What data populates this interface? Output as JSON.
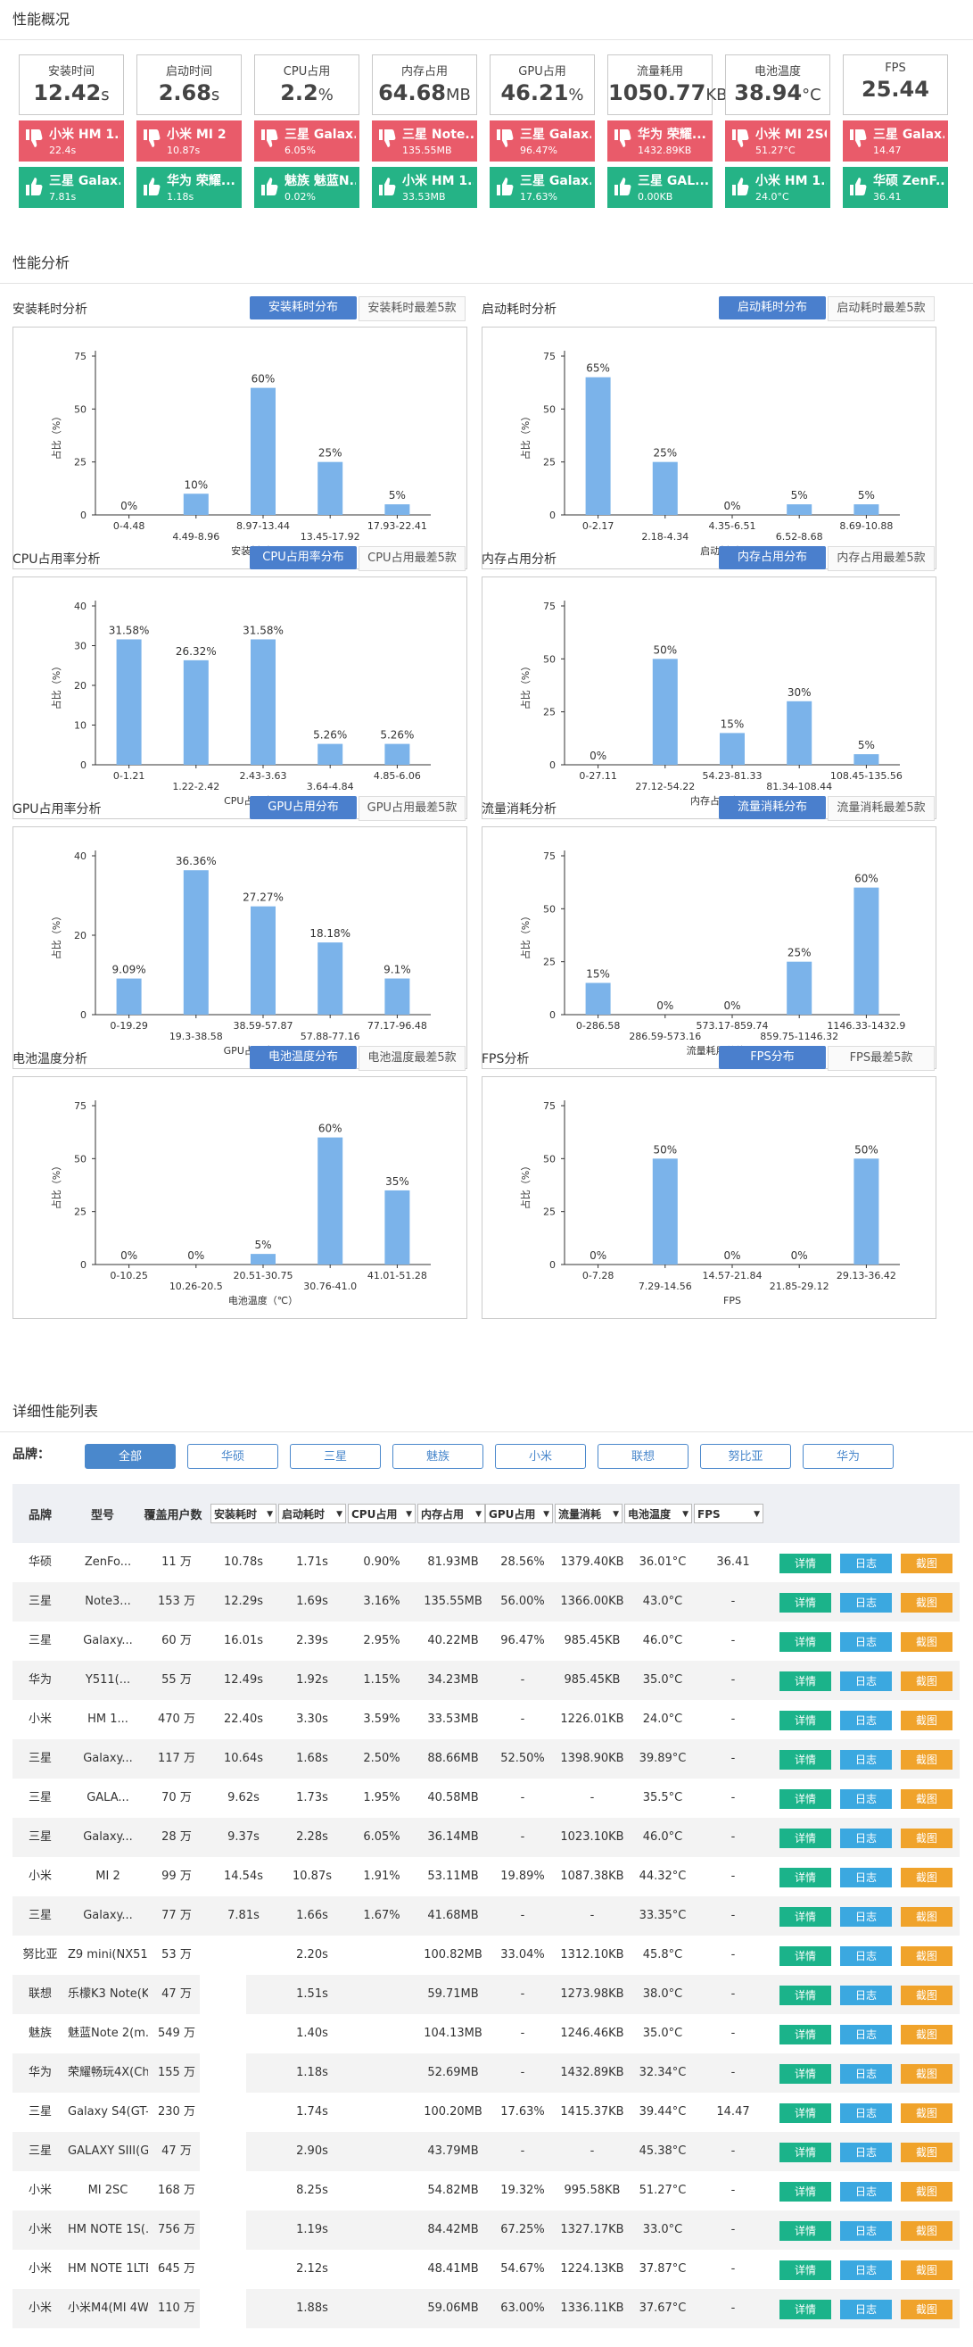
{
  "overview": {
    "title": "性能概况",
    "metrics": [
      {
        "label": "安装时间",
        "value": "12.42",
        "unit": "s",
        "worst": {
          "name": "小米 HM 1...",
          "value": "22.4s"
        },
        "best": {
          "name": "三星 Galax...",
          "value": "7.81s"
        }
      },
      {
        "label": "启动时间",
        "value": "2.68",
        "unit": "s",
        "worst": {
          "name": "小米 MI 2",
          "value": "10.87s"
        },
        "best": {
          "name": "华为 荣耀...",
          "value": "1.18s"
        }
      },
      {
        "label": "CPU占用",
        "value": "2.2",
        "unit": "%",
        "worst": {
          "name": "三星 Galax...",
          "value": "6.05%"
        },
        "best": {
          "name": "魅族 魅蓝N...",
          "value": "0.02%"
        }
      },
      {
        "label": "内存占用",
        "value": "64.68",
        "unit": "MB",
        "worst": {
          "name": "三星 Note...",
          "value": "135.55MB"
        },
        "best": {
          "name": "小米 HM 1...",
          "value": "33.53MB"
        }
      },
      {
        "label": "GPU占用",
        "value": "46.21",
        "unit": "%",
        "worst": {
          "name": "三星 Galax...",
          "value": "96.47%"
        },
        "best": {
          "name": "三星 Galax...",
          "value": "17.63%"
        }
      },
      {
        "label": "流量耗用",
        "value": "1050.77",
        "unit": "KB",
        "worst": {
          "name": "华为 荣耀...",
          "value": "1432.89KB"
        },
        "best": {
          "name": "三星 GAL...",
          "value": "0.00KB"
        }
      },
      {
        "label": "电池温度",
        "value": "38.94",
        "unit": "°C",
        "worst": {
          "name": "小米 MI 2SC",
          "value": "51.27°C"
        },
        "best": {
          "name": "小米 HM 1...",
          "value": "24.0°C"
        }
      },
      {
        "label": "FPS",
        "value": "25.44",
        "unit": "",
        "worst": {
          "name": "三星 Galax...",
          "value": "14.47"
        },
        "best": {
          "name": "华硕 ZenF...",
          "value": "36.41"
        }
      }
    ]
  },
  "analysis": {
    "title": "性能分析",
    "ylabel": "占比（%）",
    "panels": [
      {
        "title": "安装耗时分析",
        "tab_active": "安装耗时分布",
        "tab_other": "安装耗时最差5款",
        "chart_data": {
          "type": "bar",
          "xlabel": "安装耗时（s）",
          "ylim": [
            0,
            75
          ],
          "yticks": [
            0,
            25,
            50,
            75
          ],
          "categories": [
            "0-4.48",
            "4.49-8.96",
            "8.97-13.44",
            "13.45-17.92",
            "17.93-22.41"
          ],
          "values": [
            0,
            10,
            60,
            25,
            5
          ],
          "data_labels": [
            "0%",
            "10%",
            "60%",
            "25%",
            "5%"
          ]
        }
      },
      {
        "title": "启动耗时分析",
        "tab_active": "启动耗时分布",
        "tab_other": "启动耗时最差5款",
        "chart_data": {
          "type": "bar",
          "xlabel": "启动耗时（s）",
          "ylim": [
            0,
            75
          ],
          "yticks": [
            0,
            25,
            50,
            75
          ],
          "categories": [
            "0-2.17",
            "2.18-4.34",
            "4.35-6.51",
            "6.52-8.68",
            "8.69-10.88"
          ],
          "values": [
            65,
            25,
            0,
            5,
            5
          ],
          "data_labels": [
            "65%",
            "25%",
            "0%",
            "5%",
            "5%"
          ]
        }
      },
      {
        "title": "CPU占用率分析",
        "tab_active": "CPU占用率分布",
        "tab_other": "CPU占用最差5款",
        "chart_data": {
          "type": "bar",
          "xlabel": "CPU占用率（%）",
          "ylim": [
            0,
            40
          ],
          "yticks": [
            0,
            10,
            20,
            30,
            40
          ],
          "categories": [
            "0-1.21",
            "1.22-2.42",
            "2.43-3.63",
            "3.64-4.84",
            "4.85-6.06"
          ],
          "values": [
            31.58,
            26.32,
            31.58,
            5.26,
            5.26
          ],
          "data_labels": [
            "31.58%",
            "26.32%",
            "31.58%",
            "5.26%",
            "5.26%"
          ]
        }
      },
      {
        "title": "内存占用分析",
        "tab_active": "内存占用分布",
        "tab_other": "内存占用最差5款",
        "chart_data": {
          "type": "bar",
          "xlabel": "内存占用率（MB）",
          "ylim": [
            0,
            75
          ],
          "yticks": [
            0,
            25,
            50,
            75
          ],
          "categories": [
            "0-27.11",
            "27.12-54.22",
            "54.23-81.33",
            "81.34-108.44",
            "108.45-135.56"
          ],
          "values": [
            0,
            50,
            15,
            30,
            5
          ],
          "data_labels": [
            "0%",
            "50%",
            "15%",
            "30%",
            "5%"
          ]
        }
      },
      {
        "title": "GPU占用率分析",
        "tab_active": "GPU占用分布",
        "tab_other": "GPU占用最差5款",
        "chart_data": {
          "type": "bar",
          "xlabel": "GPU占用率（%）",
          "ylim": [
            0,
            40
          ],
          "yticks": [
            0,
            20,
            40
          ],
          "categories": [
            "0-19.29",
            "19.3-38.58",
            "38.59-57.87",
            "57.88-77.16",
            "77.17-96.48"
          ],
          "values": [
            9.09,
            36.36,
            27.27,
            18.18,
            9.1
          ],
          "data_labels": [
            "9.09%",
            "36.36%",
            "27.27%",
            "18.18%",
            "9.1%"
          ]
        }
      },
      {
        "title": "流量消耗分析",
        "tab_active": "流量消耗分布",
        "tab_other": "流量消耗最差5款",
        "chart_data": {
          "type": "bar",
          "xlabel": "流量耗用总值（KB）",
          "ylim": [
            0,
            75
          ],
          "yticks": [
            0,
            25,
            50,
            75
          ],
          "categories": [
            "0-286.58",
            "286.59-573.16",
            "573.17-859.74",
            "859.75-1146.32",
            "1146.33-1432.9"
          ],
          "values": [
            15,
            0,
            0,
            25,
            60
          ],
          "data_labels": [
            "15%",
            "0%",
            "0%",
            "25%",
            "60%"
          ]
        }
      },
      {
        "title": "电池温度分析",
        "tab_active": "电池温度分布",
        "tab_other": "电池温度最差5款",
        "chart_data": {
          "type": "bar",
          "xlabel": "电池温度（℃）",
          "ylim": [
            0,
            75
          ],
          "yticks": [
            0,
            25,
            50,
            75
          ],
          "categories": [
            "0-10.25",
            "10.26-20.5",
            "20.51-30.75",
            "30.76-41.0",
            "41.01-51.28"
          ],
          "values": [
            0,
            0,
            5,
            60,
            35
          ],
          "data_labels": [
            "0%",
            "0%",
            "5%",
            "60%",
            "35%"
          ]
        }
      },
      {
        "title": "FPS分析",
        "tab_active": "FPS分布",
        "tab_other": "FPS最差5款",
        "chart_data": {
          "type": "bar",
          "xlabel": "FPS",
          "ylim": [
            0,
            75
          ],
          "yticks": [
            0,
            25,
            50,
            75
          ],
          "categories": [
            "0-7.28",
            "7.29-14.56",
            "14.57-21.84",
            "21.85-29.12",
            "29.13-36.42"
          ],
          "values": [
            0,
            50,
            0,
            0,
            50
          ],
          "data_labels": [
            "0%",
            "50%",
            "0%",
            "0%",
            "50%"
          ]
        }
      }
    ]
  },
  "detail": {
    "title": "详细性能列表",
    "filter_label": "品牌：",
    "filters": [
      "全部",
      "华硕",
      "三星",
      "魅族",
      "小米",
      "联想",
      "努比亚",
      "华为"
    ],
    "active_filter": "全部",
    "columns": {
      "brand": "品牌",
      "model": "型号",
      "users": "覆盖用户数",
      "install": "安装耗时",
      "launch": "启动耗时",
      "cpu": "CPU占用",
      "mem": "内存占用",
      "gpu": "GPU占用",
      "traffic": "流量消耗",
      "temp": "电池温度",
      "fps": "FPS"
    },
    "actions": {
      "detail": "详情",
      "log": "日志",
      "shot": "截图"
    },
    "rows": [
      [
        "华硕",
        "ZenFo...",
        "11 万",
        "10.78s",
        "1.71s",
        "0.90%",
        "81.93MB",
        "28.56%",
        "1379.40KB",
        "36.01°C",
        "36.41"
      ],
      [
        "三星",
        "Note3...",
        "153 万",
        "12.29s",
        "1.69s",
        "3.16%",
        "135.55MB",
        "56.00%",
        "1366.00KB",
        "43.0°C",
        "-"
      ],
      [
        "三星",
        "Galaxy...",
        "60 万",
        "16.01s",
        "2.39s",
        "2.95%",
        "40.22MB",
        "96.47%",
        "985.45KB",
        "46.0°C",
        "-"
      ],
      [
        "华为",
        "Y511(...",
        "55 万",
        "12.49s",
        "1.92s",
        "1.15%",
        "34.23MB",
        "-",
        "985.45KB",
        "35.0°C",
        "-"
      ],
      [
        "小米",
        "HM 1...",
        "470 万",
        "22.40s",
        "3.30s",
        "3.59%",
        "33.53MB",
        "-",
        "1226.01KB",
        "24.0°C",
        "-"
      ],
      [
        "三星",
        "Galaxy...",
        "117 万",
        "10.64s",
        "1.68s",
        "2.50%",
        "88.66MB",
        "52.50%",
        "1398.90KB",
        "39.89°C",
        "-"
      ],
      [
        "三星",
        "GALA...",
        "70 万",
        "9.62s",
        "1.73s",
        "1.95%",
        "40.58MB",
        "-",
        "-",
        "35.5°C",
        "-"
      ],
      [
        "三星",
        "Galaxy...",
        "28 万",
        "9.37s",
        "2.28s",
        "6.05%",
        "36.14MB",
        "-",
        "1023.10KB",
        "46.0°C",
        "-"
      ],
      [
        "小米",
        "MI 2",
        "99 万",
        "14.54s",
        "10.87s",
        "1.91%",
        "53.11MB",
        "19.89%",
        "1087.38KB",
        "44.32°C",
        "-"
      ],
      [
        "三星",
        "Galaxy...",
        "77 万",
        "7.81s",
        "1.66s",
        "1.67%",
        "41.68MB",
        "-",
        "-",
        "33.35°C",
        "-"
      ],
      [
        "努比亚",
        "Z9 mini(NX51...",
        "53 万",
        "",
        "2.20s",
        "",
        "100.82MB",
        "33.04%",
        "1312.10KB",
        "45.8°C",
        "-"
      ],
      [
        "联想",
        "乐檬K3 Note(K...",
        "47 万",
        "",
        "1.51s",
        "",
        "59.71MB",
        "-",
        "1273.98KB",
        "38.0°C",
        "-"
      ],
      [
        "魅族",
        "魅蓝Note 2(m...",
        "549 万",
        "",
        "1.40s",
        "",
        "104.13MB",
        "-",
        "1246.46KB",
        "35.0°C",
        "-"
      ],
      [
        "华为",
        "荣耀畅玩4X(Ch...",
        "155 万",
        "",
        "1.18s",
        "",
        "52.69MB",
        "-",
        "1432.89KB",
        "32.34°C",
        "-"
      ],
      [
        "三星",
        "Galaxy S4(GT-I...",
        "230 万",
        "",
        "1.74s",
        "",
        "100.20MB",
        "17.63%",
        "1415.37KB",
        "39.44°C",
        "14.47"
      ],
      [
        "三星",
        "GALAXY SIII(G...",
        "47 万",
        "",
        "2.90s",
        "",
        "43.79MB",
        "-",
        "-",
        "45.38°C",
        "-"
      ],
      [
        "小米",
        "MI 2SC",
        "168 万",
        "",
        "8.25s",
        "",
        "54.82MB",
        "19.32%",
        "995.58KB",
        "51.27°C",
        "-"
      ],
      [
        "小米",
        "HM NOTE 1S(...",
        "756 万",
        "",
        "1.19s",
        "",
        "84.42MB",
        "67.25%",
        "1327.17KB",
        "33.0°C",
        "-"
      ],
      [
        "小米",
        "HM NOTE 1LTE",
        "645 万",
        "",
        "2.12s",
        "",
        "48.41MB",
        "54.67%",
        "1224.13KB",
        "37.87°C",
        "-"
      ],
      [
        "小米",
        "小米M4(MI 4W)",
        "110 万",
        "",
        "1.88s",
        "",
        "59.06MB",
        "63.00%",
        "1336.11KB",
        "37.67°C",
        "-"
      ]
    ]
  },
  "colors": {
    "accent": "#4a7fcd",
    "bar": "#7bb3ea",
    "bad": "#e95b6a",
    "good": "#25b386",
    "detail_btn": "#1bb38a",
    "log_btn": "#3ba8e0",
    "shot_btn": "#f0a32b"
  }
}
